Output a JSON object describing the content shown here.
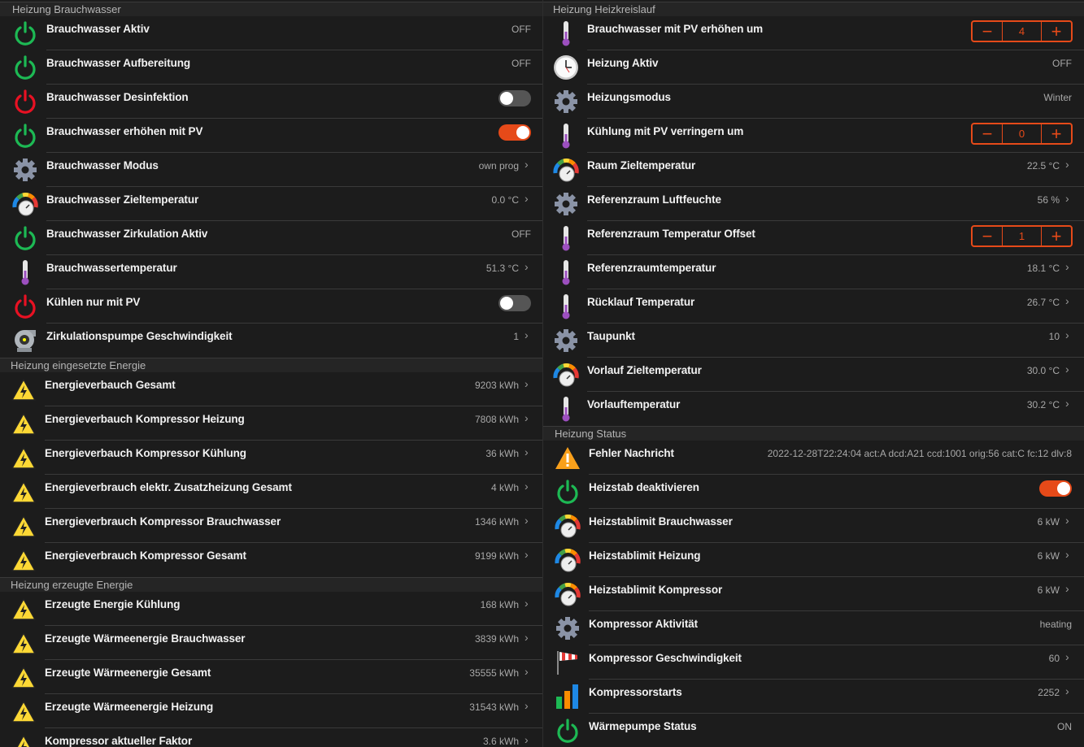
{
  "colors": {
    "accent": "#e64a19",
    "green": "#1db954",
    "red": "#e81123"
  },
  "left": [
    {
      "title": "Heizung Brauchwasser",
      "rows": [
        {
          "label": "Brauchwasser Aktiv",
          "icon": "power-green",
          "type": "value",
          "value": "OFF"
        },
        {
          "label": "Brauchwasser Aufbereitung",
          "icon": "power-green",
          "type": "value",
          "value": "OFF"
        },
        {
          "label": "Brauchwasser Desinfektion",
          "icon": "power-red",
          "type": "toggle",
          "on": false
        },
        {
          "label": "Brauchwasser erhöhen mit PV",
          "icon": "power-green",
          "type": "toggle",
          "on": true
        },
        {
          "label": "Brauchwasser Modus",
          "icon": "gear",
          "type": "value",
          "value": "own prog",
          "chevron": true
        },
        {
          "label": "Brauchwasser Zieltemperatur",
          "icon": "gauge",
          "type": "value",
          "value": "0.0 °C",
          "chevron": true
        },
        {
          "label": "Brauchwasser Zirkulation Aktiv",
          "icon": "power-green",
          "type": "value",
          "value": "OFF"
        },
        {
          "label": "Brauchwassertemperatur",
          "icon": "thermometer",
          "type": "value",
          "value": "51.3 °C",
          "chevron": true
        },
        {
          "label": "Kühlen nur mit PV",
          "icon": "power-red",
          "type": "toggle",
          "on": false
        },
        {
          "label": "Zirkulationspumpe Geschwindigkeit",
          "icon": "pump",
          "type": "value",
          "value": "1",
          "chevron": true
        }
      ]
    },
    {
      "title": "Heizung eingesetzte Energie",
      "rows": [
        {
          "label": "Energieverbauch Gesamt",
          "icon": "lightning",
          "type": "value",
          "value": "9203 kWh",
          "chevron": true
        },
        {
          "label": "Energieverbauch Kompressor Heizung",
          "icon": "lightning",
          "type": "value",
          "value": "7808 kWh",
          "chevron": true
        },
        {
          "label": "Energieverbauch Kompressor Kühlung",
          "icon": "lightning",
          "type": "value",
          "value": "36 kWh",
          "chevron": true
        },
        {
          "label": "Energieverbrauch elektr. Zusatzheizung Gesamt",
          "icon": "lightning",
          "type": "value",
          "value": "4 kWh",
          "chevron": true
        },
        {
          "label": "Energieverbrauch Kompressor Brauchwasser",
          "icon": "lightning",
          "type": "value",
          "value": "1346 kWh",
          "chevron": true
        },
        {
          "label": "Energieverbrauch Kompressor Gesamt",
          "icon": "lightning",
          "type": "value",
          "value": "9199 kWh",
          "chevron": true
        }
      ]
    },
    {
      "title": "Heizung erzeugte Energie",
      "rows": [
        {
          "label": "Erzeugte Energie Kühlung",
          "icon": "lightning",
          "type": "value",
          "value": "168 kWh",
          "chevron": true
        },
        {
          "label": "Erzeugte Wärmeenergie Brauchwasser",
          "icon": "lightning",
          "type": "value",
          "value": "3839 kWh",
          "chevron": true
        },
        {
          "label": "Erzeugte Wärmeenergie Gesamt",
          "icon": "lightning",
          "type": "value",
          "value": "35555 kWh",
          "chevron": true
        },
        {
          "label": "Erzeugte Wärmeenergie Heizung",
          "icon": "lightning",
          "type": "value",
          "value": "31543 kWh",
          "chevron": true
        },
        {
          "label": "Kompressor aktueller Faktor",
          "icon": "lightning",
          "type": "value",
          "value": "3.6 kWh",
          "chevron": true
        }
      ]
    }
  ],
  "right": [
    {
      "title": "Heizung Heizkreislauf",
      "rows": [
        {
          "label": "Brauchwasser mit PV erhöhen um",
          "icon": "thermometer",
          "type": "stepper",
          "value": "4",
          "minus": "−",
          "plus": "+"
        },
        {
          "label": "Heizung Aktiv",
          "icon": "clock",
          "type": "value",
          "value": "OFF"
        },
        {
          "label": "Heizungsmodus",
          "icon": "gear",
          "type": "value",
          "value": "Winter"
        },
        {
          "label": "Kühlung mit PV verringern um",
          "icon": "thermometer",
          "type": "stepper",
          "value": "0",
          "minus": "−",
          "plus": "+"
        },
        {
          "label": "Raum Zieltemperatur",
          "icon": "gauge",
          "type": "value",
          "value": "22.5 °C",
          "chevron": true
        },
        {
          "label": "Referenzraum Luftfeuchte",
          "icon": "gear",
          "type": "value",
          "value": "56 %",
          "chevron": true
        },
        {
          "label": "Referenzraum Temperatur Offset",
          "icon": "thermometer",
          "type": "stepper",
          "value": "1",
          "minus": "−",
          "plus": "+"
        },
        {
          "label": "Referenzraumtemperatur",
          "icon": "thermometer",
          "type": "value",
          "value": "18.1 °C",
          "chevron": true
        },
        {
          "label": "Rücklauf Temperatur",
          "icon": "thermometer",
          "type": "value",
          "value": "26.7 °C",
          "chevron": true
        },
        {
          "label": "Taupunkt",
          "icon": "gear",
          "type": "value",
          "value": "10",
          "chevron": true
        },
        {
          "label": "Vorlauf Zieltemperatur",
          "icon": "gauge",
          "type": "value",
          "value": "30.0 °C",
          "chevron": true
        },
        {
          "label": "Vorlauftemperatur",
          "icon": "thermometer",
          "type": "value",
          "value": "30.2 °C",
          "chevron": true
        }
      ]
    },
    {
      "title": "Heizung Status",
      "rows": [
        {
          "label": "Fehler Nachricht",
          "icon": "warning",
          "type": "value",
          "value": "2022-12-28T22:24:04 act:A dcd:A21 ccd:1001 orig:56 cat:C fc:12 dlv:8"
        },
        {
          "label": "Heizstab deaktivieren",
          "icon": "power-green",
          "type": "toggle",
          "on": true
        },
        {
          "label": "Heizstablimit Brauchwasser",
          "icon": "gauge",
          "type": "value",
          "value": "6 kW",
          "chevron": true
        },
        {
          "label": "Heizstablimit Heizung",
          "icon": "gauge",
          "type": "value",
          "value": "6 kW",
          "chevron": true
        },
        {
          "label": "Heizstablimit Kompressor",
          "icon": "gauge",
          "type": "value",
          "value": "6 kW",
          "chevron": true
        },
        {
          "label": "Kompressor Aktivität",
          "icon": "gear",
          "type": "value",
          "value": "heating"
        },
        {
          "label": "Kompressor Geschwindigkeit",
          "icon": "windsock",
          "type": "value",
          "value": "60",
          "chevron": true
        },
        {
          "label": "Kompressorstarts",
          "icon": "bar-chart",
          "type": "value",
          "value": "2252",
          "chevron": true
        },
        {
          "label": "Wärmepumpe Status",
          "icon": "power-green",
          "type": "value",
          "value": "ON"
        }
      ]
    }
  ]
}
